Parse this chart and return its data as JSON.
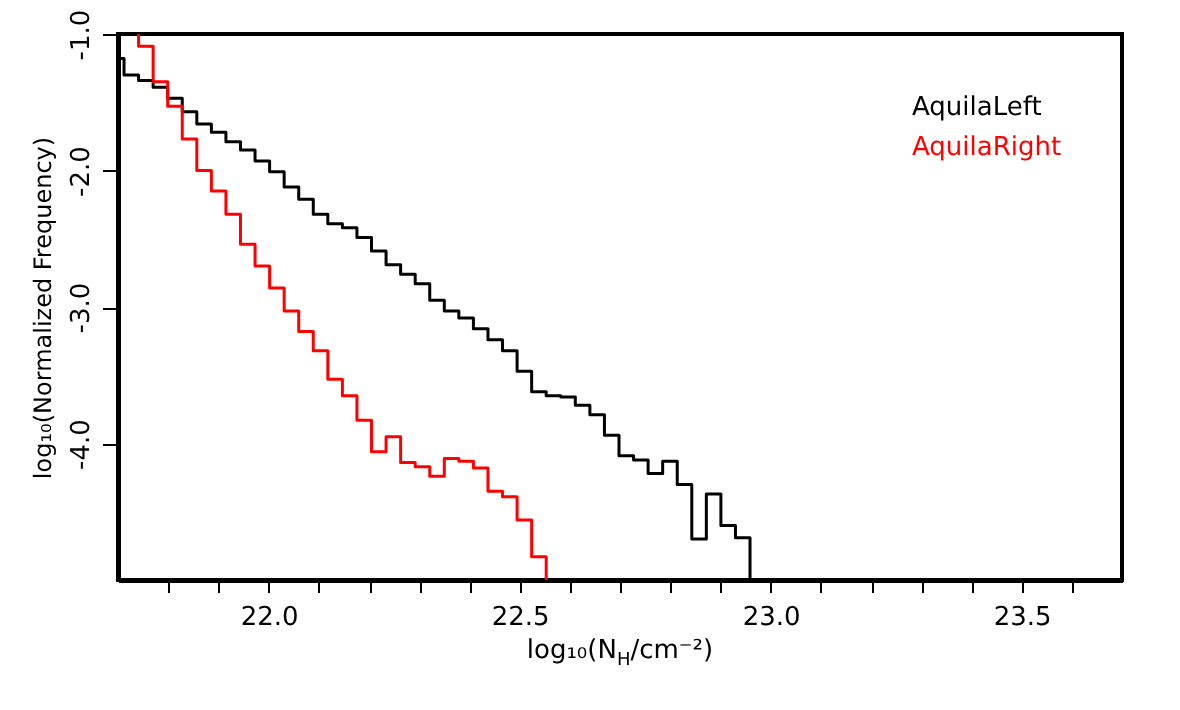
{
  "chart_data": {
    "type": "step",
    "xlabel": "log₁₀(N$_{H}$/cm⁻²)",
    "ylabel": "log₁₀(Normalized Frequency)",
    "xlim": [
      21.7,
      23.7
    ],
    "ylim": [
      -5,
      -1
    ],
    "xticks": [
      {
        "value": 21.8,
        "label": null
      },
      {
        "value": 21.9,
        "label": null
      },
      {
        "value": 22.0,
        "label": "22.0"
      },
      {
        "value": 22.1,
        "label": null
      },
      {
        "value": 22.2,
        "label": null
      },
      {
        "value": 22.3,
        "label": null
      },
      {
        "value": 22.4,
        "label": null
      },
      22.5,
      {
        "value": 22.6,
        "label": null
      },
      {
        "value": 22.7,
        "label": null
      },
      {
        "value": 22.8,
        "label": null
      },
      {
        "value": 22.9,
        "label": null
      },
      {
        "value": 23.0,
        "label": "23.0"
      },
      {
        "value": 23.1,
        "label": null
      },
      {
        "value": 23.2,
        "label": null
      },
      {
        "value": 23.3,
        "label": null
      },
      {
        "value": 23.4,
        "label": null
      },
      23.5,
      {
        "value": 23.6,
        "label": null
      }
    ],
    "yticks": [
      {
        "value": -1,
        "label": "-1.0"
      },
      {
        "value": -2,
        "label": "-2.0"
      },
      {
        "value": -3,
        "label": "-3.0"
      },
      {
        "value": -4,
        "label": "-4.0"
      }
    ],
    "legend": "top right",
    "series": [
      {
        "name": "AquilaLeft",
        "color": "#000000",
        "x": [
          21.7,
          21.712,
          21.741,
          21.77,
          21.799,
          21.828,
          21.857,
          21.886,
          21.915,
          21.944,
          21.973,
          22.002,
          22.031,
          22.06,
          22.089,
          22.118,
          22.147,
          22.176,
          22.205,
          22.234,
          22.263,
          22.292,
          22.321,
          22.35,
          22.379,
          22.408,
          22.437,
          22.466,
          22.495,
          22.524,
          22.553,
          22.582,
          22.611,
          22.64,
          22.669,
          22.698,
          22.727,
          22.756,
          22.785,
          22.814,
          22.843,
          22.872,
          22.901,
          22.93,
          22.959
        ],
        "values": [
          -1.18,
          -1.3,
          -1.34,
          -1.39,
          -1.47,
          -1.57,
          -1.66,
          -1.72,
          -1.79,
          -1.85,
          -1.93,
          -2.01,
          -2.12,
          -2.21,
          -2.32,
          -2.39,
          -2.42,
          -2.49,
          -2.59,
          -2.69,
          -2.76,
          -2.83,
          -2.95,
          -3.03,
          -3.08,
          -3.16,
          -3.24,
          -3.32,
          -3.47,
          -3.62,
          -3.65,
          -3.66,
          -3.72,
          -3.79,
          -3.94,
          -4.09,
          -4.12,
          -4.22,
          -4.13,
          -4.3,
          -4.7,
          -4.37,
          -4.6,
          -4.69,
          -5
        ]
      },
      {
        "name": "AquilaRight",
        "color": "#ff0000",
        "x": [
          21.741,
          21.741,
          21.77,
          21.799,
          21.828,
          21.857,
          21.886,
          21.915,
          21.944,
          21.973,
          22.002,
          22.031,
          22.06,
          22.089,
          22.118,
          22.147,
          22.176,
          22.205,
          22.234,
          22.263,
          22.292,
          22.321,
          22.35,
          22.379,
          22.408,
          22.437,
          22.466,
          22.495,
          22.524,
          22.553
        ],
        "values": [
          -1.0,
          -1.09,
          -1.35,
          -1.53,
          -1.77,
          -2.0,
          -2.15,
          -2.32,
          -2.54,
          -2.7,
          -2.86,
          -3.03,
          -3.18,
          -3.32,
          -3.53,
          -3.65,
          -3.83,
          -4.06,
          -3.95,
          -4.14,
          -4.17,
          -4.24,
          -4.11,
          -4.13,
          -4.18,
          -4.35,
          -4.39,
          -4.56,
          -4.83,
          -5
        ]
      }
    ]
  }
}
